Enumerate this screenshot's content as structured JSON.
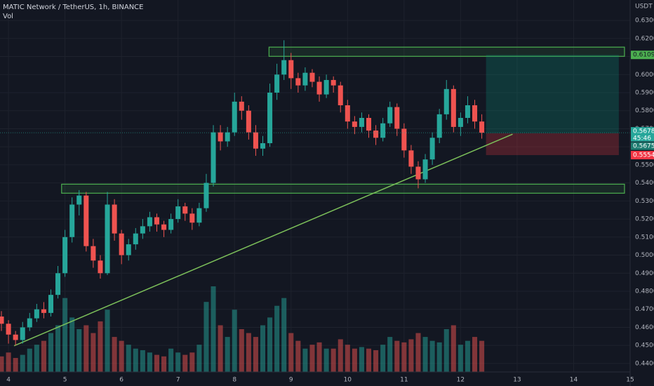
{
  "chart_data": {
    "type": "candlestick",
    "title": "MATIC Network / TetherUS, 1h, BINANCE",
    "indicator": "Vol",
    "currency": "USDT",
    "up_color": "#26a69a",
    "down_color": "#ef5350",
    "grid": true,
    "x": [
      3.875,
      4.0,
      4.125,
      4.25,
      4.375,
      4.5,
      4.625,
      4.75,
      4.875,
      5.0,
      5.125,
      5.25,
      5.375,
      5.5,
      5.625,
      5.75,
      5.875,
      6.0,
      6.125,
      6.25,
      6.375,
      6.5,
      6.625,
      6.75,
      6.875,
      7.0,
      7.125,
      7.25,
      7.375,
      7.5,
      7.625,
      7.75,
      7.875,
      8.0,
      8.125,
      8.25,
      8.375,
      8.5,
      8.625,
      8.75,
      8.875,
      9.0,
      9.125,
      9.25,
      9.375,
      9.5,
      9.625,
      9.75,
      9.875,
      10.0,
      10.125,
      10.25,
      10.375,
      10.5,
      10.625,
      10.75,
      10.875,
      11.0,
      11.125,
      11.25,
      11.375,
      11.5,
      11.625,
      11.75,
      11.875,
      12.0,
      12.125,
      12.25,
      12.375
    ],
    "open": [
      0.466,
      0.462,
      0.456,
      0.453,
      0.46,
      0.465,
      0.47,
      0.468,
      0.478,
      0.49,
      0.51,
      0.528,
      0.533,
      0.505,
      0.497,
      0.49,
      0.528,
      0.512,
      0.5,
      0.506,
      0.512,
      0.516,
      0.521,
      0.517,
      0.514,
      0.52,
      0.527,
      0.523,
      0.518,
      0.526,
      0.54,
      0.568,
      0.563,
      0.568,
      0.585,
      0.58,
      0.568,
      0.559,
      0.562,
      0.59,
      0.6,
      0.608,
      0.598,
      0.594,
      0.601,
      0.596,
      0.589,
      0.597,
      0.594,
      0.583,
      0.574,
      0.571,
      0.576,
      0.569,
      0.565,
      0.573,
      0.582,
      0.57,
      0.558,
      0.549,
      0.542,
      0.553,
      0.565,
      0.578,
      0.592,
      0.571,
      0.576,
      0.583,
      0.574
    ],
    "high": [
      0.469,
      0.464,
      0.458,
      0.463,
      0.468,
      0.473,
      0.474,
      0.481,
      0.494,
      0.514,
      0.532,
      0.536,
      0.535,
      0.509,
      0.5,
      0.535,
      0.531,
      0.514,
      0.509,
      0.515,
      0.52,
      0.524,
      0.523,
      0.519,
      0.523,
      0.531,
      0.529,
      0.526,
      0.529,
      0.545,
      0.572,
      0.572,
      0.571,
      0.59,
      0.588,
      0.583,
      0.572,
      0.566,
      0.595,
      0.606,
      0.619,
      0.612,
      0.601,
      0.604,
      0.603,
      0.599,
      0.6,
      0.599,
      0.596,
      0.586,
      0.577,
      0.579,
      0.578,
      0.572,
      0.576,
      0.585,
      0.584,
      0.573,
      0.561,
      0.552,
      0.556,
      0.568,
      0.581,
      0.597,
      0.594,
      0.579,
      0.588,
      0.586,
      0.578
    ],
    "low": [
      0.458,
      0.451,
      0.45,
      0.451,
      0.458,
      0.463,
      0.465,
      0.466,
      0.476,
      0.488,
      0.507,
      0.522,
      0.502,
      0.493,
      0.487,
      0.489,
      0.508,
      0.495,
      0.497,
      0.503,
      0.509,
      0.513,
      0.513,
      0.51,
      0.512,
      0.518,
      0.519,
      0.514,
      0.516,
      0.524,
      0.538,
      0.558,
      0.56,
      0.566,
      0.575,
      0.564,
      0.555,
      0.555,
      0.56,
      0.586,
      0.597,
      0.592,
      0.59,
      0.591,
      0.593,
      0.585,
      0.587,
      0.59,
      0.579,
      0.57,
      0.567,
      0.568,
      0.565,
      0.561,
      0.563,
      0.571,
      0.566,
      0.554,
      0.545,
      0.537,
      0.54,
      0.55,
      0.562,
      0.575,
      0.568,
      0.566,
      0.573,
      0.57,
      0.5645
    ],
    "close": [
      0.462,
      0.456,
      0.453,
      0.46,
      0.465,
      0.47,
      0.468,
      0.478,
      0.49,
      0.51,
      0.528,
      0.533,
      0.505,
      0.497,
      0.49,
      0.528,
      0.512,
      0.5,
      0.506,
      0.512,
      0.516,
      0.521,
      0.517,
      0.514,
      0.52,
      0.527,
      0.523,
      0.518,
      0.526,
      0.54,
      0.568,
      0.563,
      0.568,
      0.585,
      0.58,
      0.568,
      0.559,
      0.562,
      0.59,
      0.6,
      0.608,
      0.598,
      0.594,
      0.601,
      0.596,
      0.589,
      0.597,
      0.594,
      0.583,
      0.574,
      0.571,
      0.576,
      0.569,
      0.565,
      0.573,
      0.582,
      0.57,
      0.558,
      0.549,
      0.542,
      0.553,
      0.565,
      0.578,
      0.592,
      0.571,
      0.576,
      0.583,
      0.574,
      0.5678
    ],
    "volume": [
      20,
      25,
      18,
      22,
      30,
      35,
      40,
      50,
      60,
      95,
      70,
      55,
      60,
      50,
      65,
      80,
      45,
      40,
      35,
      30,
      28,
      25,
      22,
      20,
      30,
      25,
      22,
      25,
      35,
      90,
      110,
      60,
      45,
      80,
      55,
      50,
      45,
      60,
      70,
      85,
      95,
      50,
      40,
      30,
      35,
      38,
      30,
      30,
      42,
      35,
      30,
      32,
      30,
      28,
      35,
      45,
      40,
      38,
      42,
      50,
      45,
      40,
      38,
      55,
      60,
      35,
      40,
      45,
      40
    ],
    "xlim": [
      3.85,
      15.0
    ],
    "xticks": [
      4,
      5,
      6,
      7,
      8,
      9,
      10,
      11,
      12,
      13,
      14,
      15
    ],
    "ylim": [
      0.4353,
      0.6413
    ],
    "yticks": [
      {
        "value": 0.44,
        "label": "0.4400"
      },
      {
        "value": 0.45,
        "label": "0.4500"
      },
      {
        "value": 0.46,
        "label": "0.4600"
      },
      {
        "value": 0.47,
        "label": "0.4700"
      },
      {
        "value": 0.48,
        "label": "0.4800"
      },
      {
        "value": 0.49,
        "label": "0.4900"
      },
      {
        "value": 0.5,
        "label": "0.5000"
      },
      {
        "value": 0.51,
        "label": "0.5100"
      },
      {
        "value": 0.52,
        "label": "0.5200"
      },
      {
        "value": 0.53,
        "label": "0.5300"
      },
      {
        "value": 0.54,
        "label": "0.5400"
      },
      {
        "value": 0.55,
        "label": "0.5500"
      },
      {
        "value": 0.56,
        "label": "0.5600"
      },
      {
        "value": 0.57,
        "label": "0.5700"
      },
      {
        "value": 0.58,
        "label": "0.5800"
      },
      {
        "value": 0.59,
        "label": "0.5900"
      },
      {
        "value": 0.6,
        "label": "0.6000"
      },
      {
        "value": 0.61,
        "label": "0.6100"
      },
      {
        "value": 0.62,
        "label": "0.6200"
      },
      {
        "value": 0.63,
        "label": "0.6300"
      }
    ],
    "zones": [
      {
        "x": [
          8.61,
          14.9
        ],
        "ylim": [
          0.6101,
          0.6152
        ],
        "color": "#4caf50"
      },
      {
        "x": [
          4.94,
          14.9
        ],
        "ylim": [
          0.5343,
          0.5393
        ],
        "color": "#4caf50"
      }
    ],
    "trendline": {
      "x": [
        4.1,
        12.92
      ],
      "y": [
        0.4498,
        0.567
      ],
      "color": "#7cc05a"
    },
    "position": {
      "x": [
        12.45,
        14.8
      ],
      "entry": 0.5675,
      "target": 0.6109,
      "stop": 0.5554
    },
    "countdown": "45:46"
  }
}
